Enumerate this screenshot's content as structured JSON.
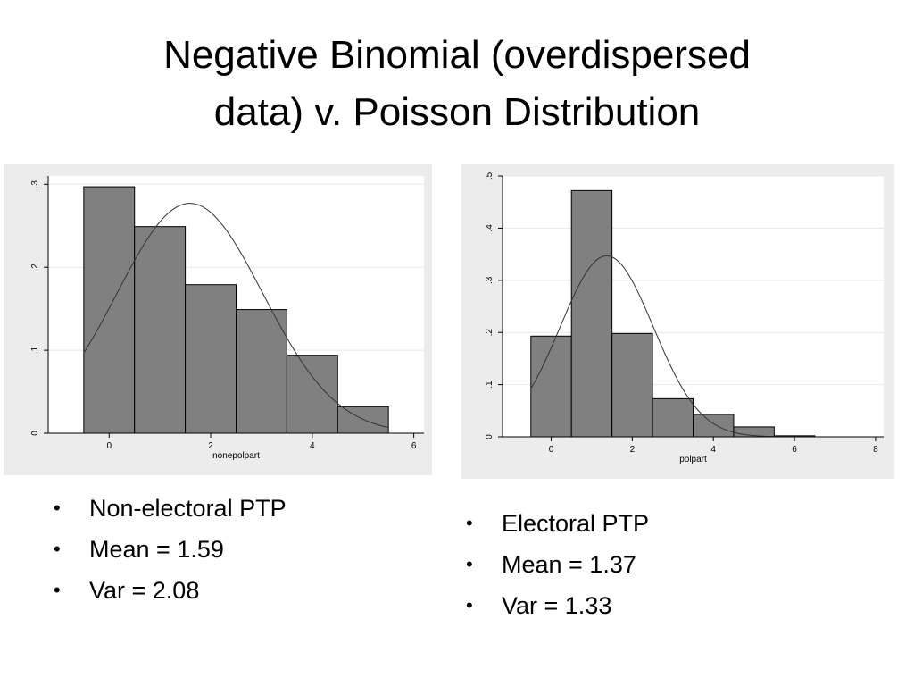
{
  "slide": {
    "title_lines": [
      "Negative Binomial (overdispersed",
      "data) v. Poisson Distribution"
    ]
  },
  "chart_data": [
    {
      "type": "bar",
      "xlabel": "nonepolpart",
      "ylabel": "",
      "x_ticks": [
        "0",
        "2",
        "4",
        "6"
      ],
      "y_ticks": [
        "0",
        ".1",
        ".2",
        ".3"
      ],
      "xlim": [
        -1.2,
        6.2
      ],
      "ylim": [
        0,
        0.31
      ],
      "grid": true,
      "bar_color": "#808080",
      "bins": [
        {
          "x0": -0.5,
          "x1": 0.5,
          "value": 0.297
        },
        {
          "x0": 0.5,
          "x1": 1.5,
          "value": 0.249
        },
        {
          "x0": 1.5,
          "x1": 2.5,
          "value": 0.179
        },
        {
          "x0": 2.5,
          "x1": 3.5,
          "value": 0.149
        },
        {
          "x0": 3.5,
          "x1": 4.5,
          "value": 0.094
        },
        {
          "x0": 4.5,
          "x1": 5.5,
          "value": 0.032
        }
      ],
      "overlay_curve": {
        "type": "normal",
        "mean": 1.59,
        "sd": 1.44
      }
    },
    {
      "type": "bar",
      "xlabel": "polpart",
      "ylabel": "",
      "x_ticks": [
        "0",
        "2",
        "4",
        "6",
        "8"
      ],
      "y_ticks": [
        "0",
        ".1",
        ".2",
        ".3",
        ".4",
        ".5"
      ],
      "xlim": [
        -1.2,
        8.2
      ],
      "ylim": [
        0,
        0.5
      ],
      "grid": true,
      "bar_color": "#808080",
      "bins": [
        {
          "x0": -0.5,
          "x1": 0.5,
          "value": 0.193
        },
        {
          "x0": 0.5,
          "x1": 1.5,
          "value": 0.472
        },
        {
          "x0": 1.5,
          "x1": 2.5,
          "value": 0.198
        },
        {
          "x0": 2.5,
          "x1": 3.5,
          "value": 0.073
        },
        {
          "x0": 3.5,
          "x1": 4.5,
          "value": 0.043
        },
        {
          "x0": 4.5,
          "x1": 5.5,
          "value": 0.019
        },
        {
          "x0": 5.5,
          "x1": 6.5,
          "value": 0.002
        }
      ],
      "overlay_curve": {
        "type": "normal",
        "mean": 1.37,
        "sd": 1.15
      }
    }
  ],
  "left_bullets": [
    "Non-electoral PTP",
    "Mean = 1.59",
    "Var = 2.08"
  ],
  "right_bullets": [
    "Electoral PTP",
    "Mean = 1.37",
    "Var = 1.33"
  ]
}
